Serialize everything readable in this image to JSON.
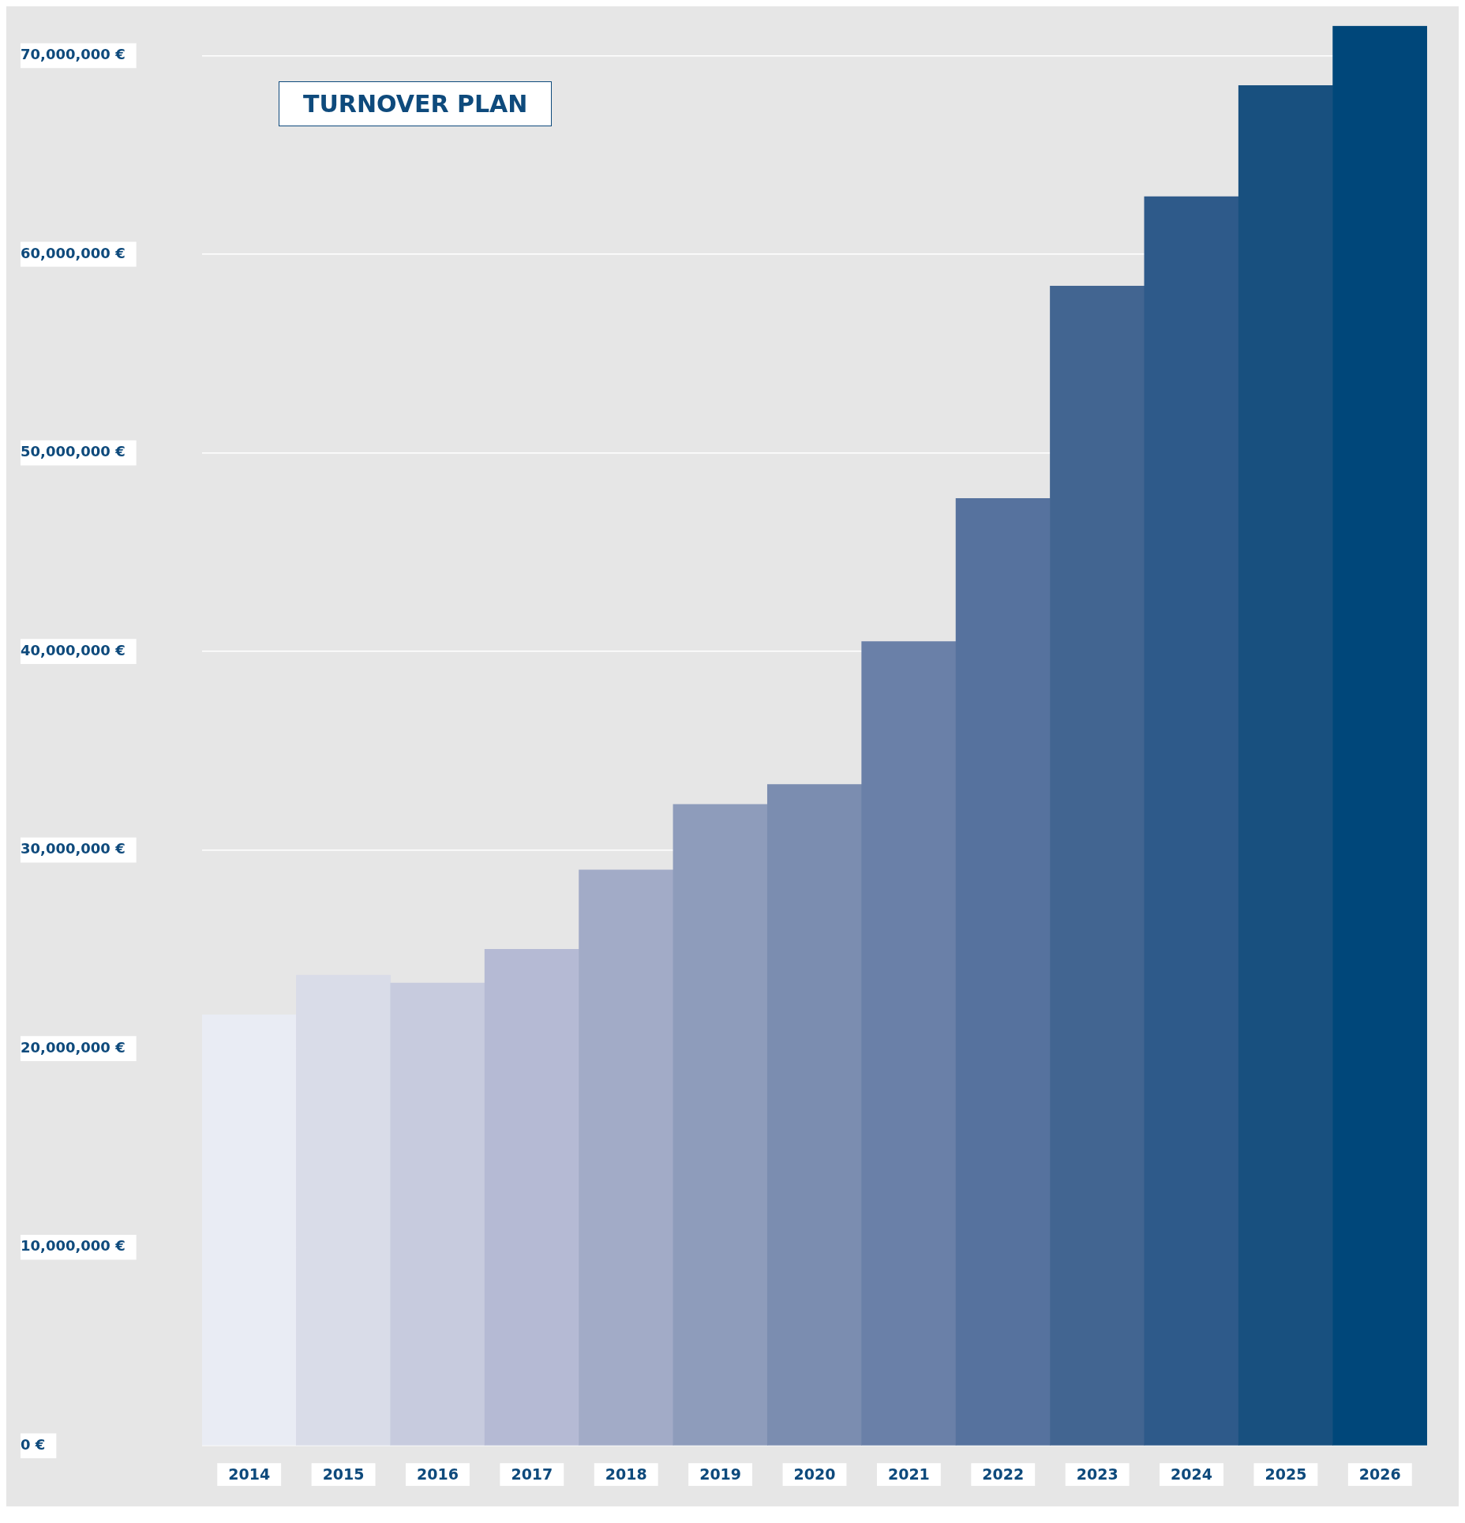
{
  "chart_data": {
    "type": "bar",
    "title": "TURNOVER PLAN",
    "categories": [
      "2014",
      "2015",
      "2016",
      "2017",
      "2018",
      "2019",
      "2020",
      "2021",
      "2022",
      "2023",
      "2024",
      "2025",
      "2026"
    ],
    "values": [
      21700000,
      23700000,
      23300000,
      25000000,
      29000000,
      32300000,
      33300000,
      40500000,
      47700000,
      58400000,
      62900000,
      68500000,
      71500000
    ],
    "colors": [
      "#e9ecf4",
      "#d9dce8",
      "#c7cbde",
      "#b5bad4",
      "#a2abc7",
      "#8e9cbb",
      "#7b8db0",
      "#6a80a8",
      "#56729e",
      "#426591",
      "#2e5a8a",
      "#18507f",
      "#00477a"
    ],
    "ylim": [
      0,
      71500000
    ],
    "yticks": [
      {
        "value": 0,
        "label": "0 €"
      },
      {
        "value": 10000000,
        "label": "10,000,000 €"
      },
      {
        "value": 20000000,
        "label": "20,000,000 €"
      },
      {
        "value": 30000000,
        "label": "30,000,000 €"
      },
      {
        "value": 40000000,
        "label": "40,000,000 €"
      },
      {
        "value": 50000000,
        "label": "50,000,000 €"
      },
      {
        "value": 60000000,
        "label": "60,000,000 €"
      },
      {
        "value": 70000000,
        "label": "70,000,000 €"
      }
    ],
    "grid": "y",
    "legend": false
  }
}
